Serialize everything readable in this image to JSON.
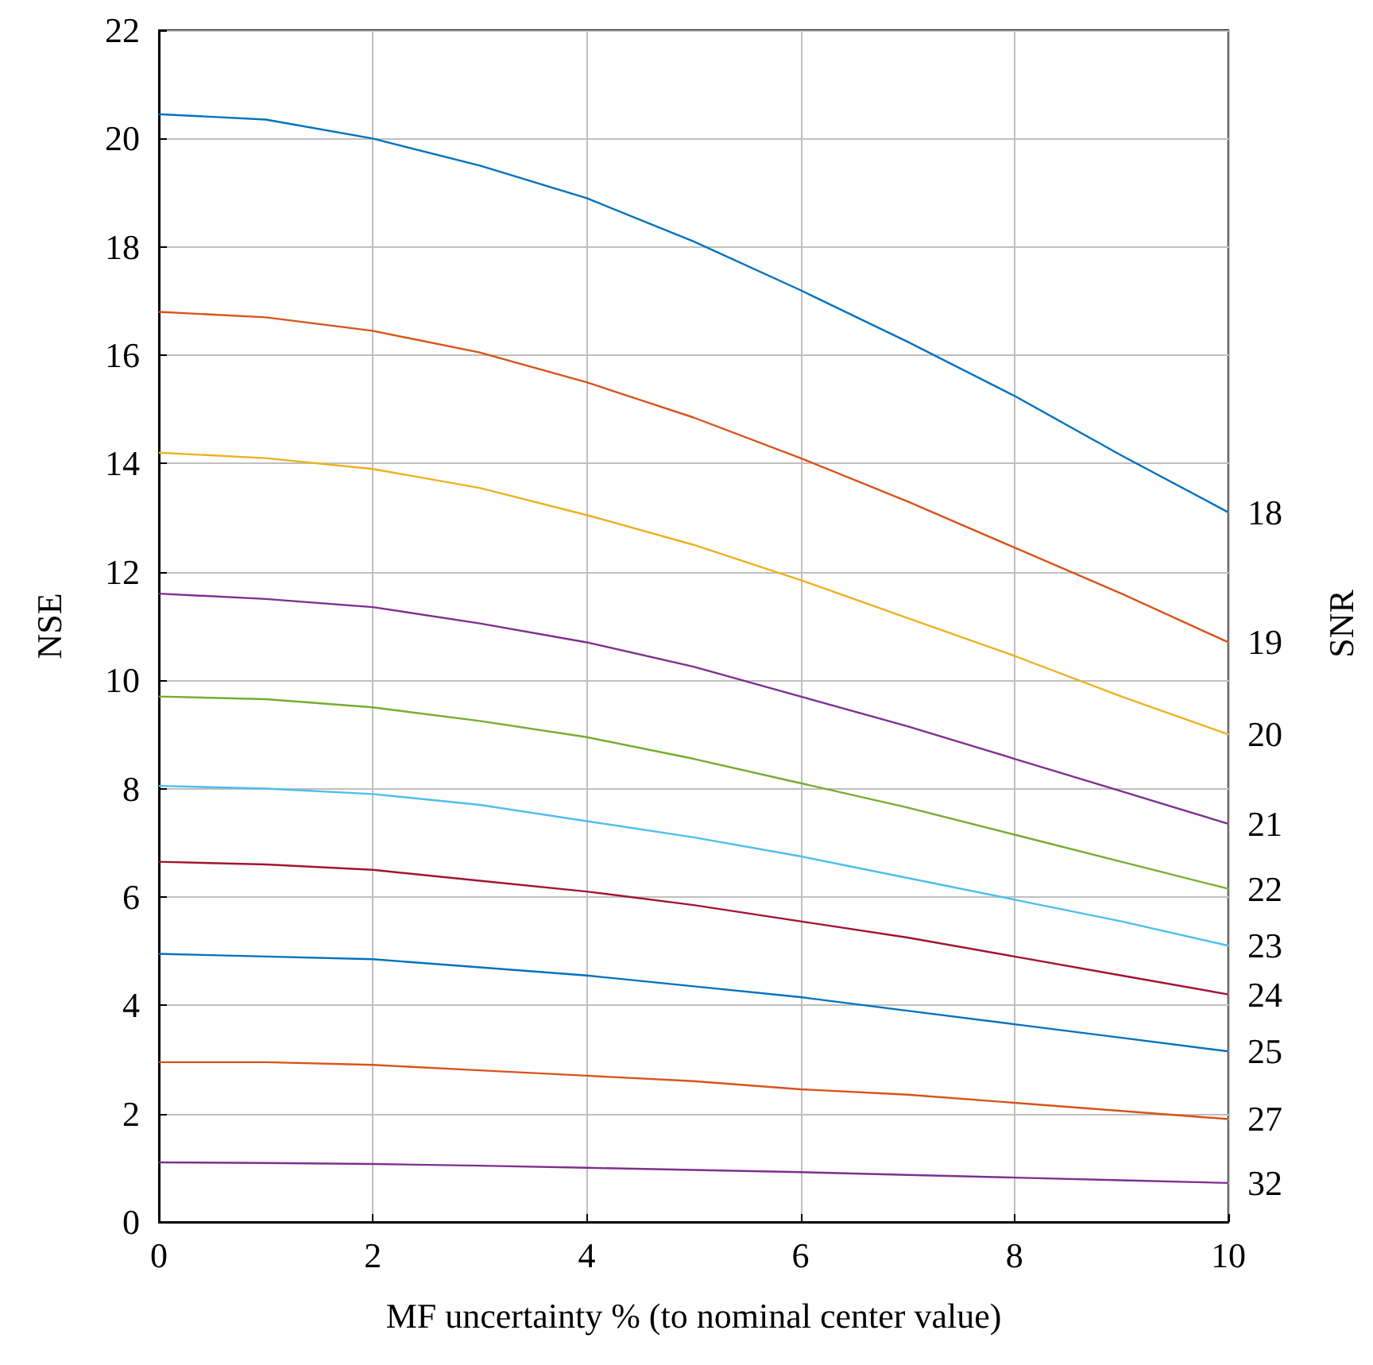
{
  "chart_data": {
    "type": "line",
    "xlabel": "MF uncertainty % (to nominal center value)",
    "ylabel": "NSE",
    "legend_title": "SNR",
    "x": [
      0,
      1,
      2,
      3,
      4,
      5,
      6,
      7,
      8,
      9,
      10
    ],
    "series": [
      {
        "name": "18",
        "color": "#0072bd",
        "values": [
          20.45,
          20.35,
          20.0,
          19.5,
          18.9,
          18.1,
          17.2,
          16.25,
          15.25,
          14.15,
          13.1
        ]
      },
      {
        "name": "19",
        "color": "#d95319",
        "values": [
          16.8,
          16.7,
          16.45,
          16.05,
          15.5,
          14.85,
          14.1,
          13.3,
          12.45,
          11.6,
          10.7
        ]
      },
      {
        "name": "20",
        "color": "#edb120",
        "values": [
          14.2,
          14.1,
          13.9,
          13.55,
          13.05,
          12.5,
          11.85,
          11.15,
          10.45,
          9.7,
          9.0
        ]
      },
      {
        "name": "21",
        "color": "#7e2f8e",
        "values": [
          11.6,
          11.5,
          11.35,
          11.05,
          10.7,
          10.25,
          9.7,
          9.15,
          8.55,
          7.95,
          7.35
        ]
      },
      {
        "name": "22",
        "color": "#77ac30",
        "values": [
          9.7,
          9.65,
          9.5,
          9.25,
          8.95,
          8.55,
          8.1,
          7.65,
          7.15,
          6.65,
          6.15
        ]
      },
      {
        "name": "23",
        "color": "#4dbeee",
        "values": [
          8.05,
          8.0,
          7.9,
          7.7,
          7.4,
          7.1,
          6.75,
          6.35,
          5.95,
          5.55,
          5.1
        ]
      },
      {
        "name": "24",
        "color": "#a2142f",
        "values": [
          6.65,
          6.6,
          6.5,
          6.3,
          6.1,
          5.85,
          5.55,
          5.25,
          4.9,
          4.55,
          4.2
        ]
      },
      {
        "name": "25",
        "color": "#0072bd",
        "values": [
          4.95,
          4.9,
          4.85,
          4.7,
          4.55,
          4.35,
          4.15,
          3.9,
          3.65,
          3.4,
          3.15
        ]
      },
      {
        "name": "27",
        "color": "#d95319",
        "values": [
          2.95,
          2.95,
          2.9,
          2.8,
          2.7,
          2.6,
          2.45,
          2.35,
          2.2,
          2.05,
          1.9
        ]
      },
      {
        "name": "32",
        "color": "#7e2f8e",
        "values": [
          1.1,
          1.09,
          1.07,
          1.04,
          1.0,
          0.96,
          0.92,
          0.87,
          0.82,
          0.77,
          0.72
        ]
      }
    ],
    "xlim": [
      0,
      10
    ],
    "xticks": [
      0,
      2,
      4,
      6,
      8,
      10
    ],
    "ylim": [
      0,
      22
    ],
    "yticks": [
      0,
      2,
      4,
      6,
      8,
      10,
      12,
      14,
      16,
      18,
      20,
      22
    ],
    "grid": true,
    "legend": "right",
    "marker": "none",
    "line_style": "solid"
  }
}
